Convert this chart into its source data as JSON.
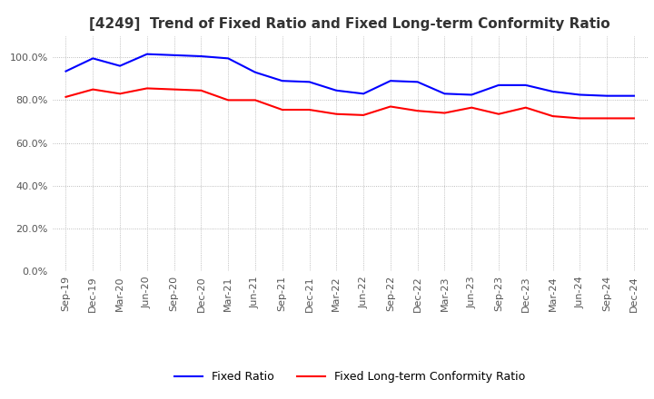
{
  "title": "[4249]  Trend of Fixed Ratio and Fixed Long-term Conformity Ratio",
  "x_labels": [
    "Sep-19",
    "Dec-19",
    "Mar-20",
    "Jun-20",
    "Sep-20",
    "Dec-20",
    "Mar-21",
    "Jun-21",
    "Sep-21",
    "Dec-21",
    "Mar-22",
    "Jun-22",
    "Sep-22",
    "Dec-22",
    "Mar-23",
    "Jun-23",
    "Sep-23",
    "Dec-23",
    "Mar-24",
    "Jun-24",
    "Sep-24",
    "Dec-24"
  ],
  "fixed_ratio": [
    93.5,
    99.5,
    96.0,
    101.5,
    101.0,
    100.5,
    99.5,
    93.0,
    89.0,
    88.5,
    84.5,
    83.0,
    89.0,
    88.5,
    83.0,
    82.5,
    87.0,
    87.0,
    84.0,
    82.5,
    82.0,
    82.0
  ],
  "fixed_lt_ratio": [
    81.5,
    85.0,
    83.0,
    85.5,
    85.0,
    84.5,
    80.0,
    80.0,
    75.5,
    75.5,
    73.5,
    73.0,
    77.0,
    75.0,
    74.0,
    76.5,
    73.5,
    76.5,
    72.5,
    71.5,
    71.5,
    71.5
  ],
  "ylim": [
    0,
    110
  ],
  "yticks": [
    0,
    20,
    40,
    60,
    80,
    100
  ],
  "ytick_labels": [
    "0.0%",
    "20.0%",
    "40.0%",
    "60.0%",
    "80.0%",
    "100.0%"
  ],
  "fixed_ratio_color": "#0000ff",
  "fixed_lt_ratio_color": "#ff0000",
  "grid_color": "#aaaaaa",
  "background_color": "#ffffff",
  "line_width": 1.5,
  "legend_fixed_ratio": "Fixed Ratio",
  "legend_fixed_lt_ratio": "Fixed Long-term Conformity Ratio",
  "title_fontsize": 11,
  "tick_fontsize": 8,
  "legend_fontsize": 9
}
